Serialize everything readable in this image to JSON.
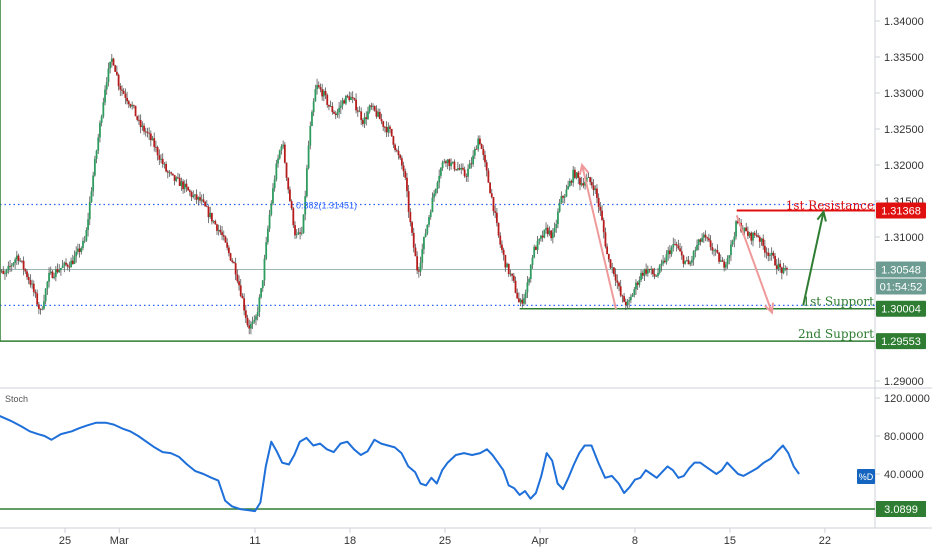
{
  "chart_data": [
    {
      "type": "candlestick",
      "price_axis": {
        "ticks": [
          "1.34000",
          "1.33500",
          "1.33000",
          "1.32500",
          "1.32000",
          "1.31500",
          "1.31000",
          "1.30500",
          "1.30000",
          "1.29500",
          "1.29000"
        ],
        "ylim": [
          1.2885,
          1.3425
        ]
      },
      "x_axis": {
        "ticks": [
          {
            "label": "25",
            "day": 0
          },
          {
            "label": "Mar",
            "day": 4
          },
          {
            "label": "11",
            "day": 14
          },
          {
            "label": "18",
            "day": 21
          },
          {
            "label": "25",
            "day": 28
          },
          {
            "label": "Apr",
            "day": 35
          },
          {
            "label": "8",
            "day": 42
          },
          {
            "label": "15",
            "day": 49
          },
          {
            "label": "22",
            "day": 56
          }
        ]
      },
      "levels": {
        "fib": {
          "label": "0.382(1.31451)",
          "value": 1.31451,
          "color": "#2962ff"
        },
        "resistance": {
          "label": "1st Resistance",
          "value": 1.31368,
          "tag": "1.31368",
          "color": "#e01010"
        },
        "support1": {
          "label": "1st Support",
          "value": 1.30004,
          "tag": "1.30004",
          "color": "#2e7d32"
        },
        "support2": {
          "label": "2nd Support",
          "value": 1.29553,
          "tag": "1.29553",
          "color": "#2e7d32"
        },
        "support1_dotted": {
          "value": 1.3005,
          "color": "#2962ff"
        }
      },
      "current": {
        "price": "1.30548",
        "countdown": "01:54:52",
        "value": 1.30548
      },
      "close_path": [
        [
          -5.3,
          1.3065
        ],
        [
          -4.5,
          1.3045
        ],
        [
          -3.5,
          1.3075
        ],
        [
          -2.5,
          1.3035
        ],
        [
          -1.8,
          1.2995
        ],
        [
          -1.2,
          1.3045
        ],
        [
          -0.5,
          1.3055
        ],
        [
          0.5,
          1.3065
        ],
        [
          1.5,
          1.3095
        ],
        [
          2.0,
          1.3175
        ],
        [
          2.5,
          1.3245
        ],
        [
          3.0,
          1.3315
        ],
        [
          3.5,
          1.335
        ],
        [
          4.0,
          1.331
        ],
        [
          4.5,
          1.3295
        ],
        [
          5.0,
          1.328
        ],
        [
          5.5,
          1.3255
        ],
        [
          6.0,
          1.3245
        ],
        [
          6.5,
          1.323
        ],
        [
          7.0,
          1.321
        ],
        [
          7.5,
          1.319
        ],
        [
          8.0,
          1.318
        ],
        [
          8.5,
          1.3175
        ],
        [
          9.0,
          1.3165
        ],
        [
          9.5,
          1.3155
        ],
        [
          10.0,
          1.315
        ],
        [
          10.5,
          1.3135
        ],
        [
          11.0,
          1.312
        ],
        [
          11.5,
          1.3105
        ],
        [
          12.0,
          1.308
        ],
        [
          12.5,
          1.306
        ],
        [
          13.0,
          1.302
        ],
        [
          13.5,
          1.2975
        ],
        [
          14.0,
          1.298
        ],
        [
          14.5,
          1.303
        ],
        [
          15.0,
          1.312
        ],
        [
          15.5,
          1.319
        ],
        [
          16.0,
          1.3235
        ],
        [
          16.5,
          1.316
        ],
        [
          17.0,
          1.31
        ],
        [
          17.5,
          1.3105
        ],
        [
          18.0,
          1.324
        ],
        [
          18.5,
          1.331
        ],
        [
          19.0,
          1.33
        ],
        [
          19.5,
          1.328
        ],
        [
          20.0,
          1.327
        ],
        [
          20.5,
          1.329
        ],
        [
          21.0,
          1.3295
        ],
        [
          21.5,
          1.328
        ],
        [
          22.0,
          1.326
        ],
        [
          22.5,
          1.328
        ],
        [
          23.0,
          1.327
        ],
        [
          23.5,
          1.3255
        ],
        [
          24.0,
          1.3245
        ],
        [
          24.5,
          1.3215
        ],
        [
          25.0,
          1.319
        ],
        [
          25.5,
          1.311
        ],
        [
          26.0,
          1.305
        ],
        [
          26.5,
          1.31
        ],
        [
          27.0,
          1.3145
        ],
        [
          27.5,
          1.3185
        ],
        [
          28.0,
          1.321
        ],
        [
          28.5,
          1.32
        ],
        [
          29.0,
          1.3195
        ],
        [
          29.5,
          1.3185
        ],
        [
          30.0,
          1.3205
        ],
        [
          30.5,
          1.324
        ],
        [
          31.0,
          1.3195
        ],
        [
          31.5,
          1.315
        ],
        [
          32.0,
          1.3095
        ],
        [
          32.5,
          1.306
        ],
        [
          33.0,
          1.304
        ],
        [
          33.5,
          1.3005
        ],
        [
          34.0,
          1.3025
        ],
        [
          34.5,
          1.308
        ],
        [
          35.0,
          1.3095
        ],
        [
          35.5,
          1.311
        ],
        [
          36.0,
          1.31
        ],
        [
          36.5,
          1.315
        ],
        [
          37.0,
          1.3165
        ],
        [
          37.5,
          1.319
        ],
        [
          38.0,
          1.3175
        ],
        [
          38.5,
          1.318
        ],
        [
          39.0,
          1.317
        ],
        [
          39.5,
          1.313
        ],
        [
          40.0,
          1.307
        ],
        [
          40.5,
          1.305
        ],
        [
          41.0,
          1.3015
        ],
        [
          41.5,
          1.3005
        ],
        [
          42.0,
          1.303
        ],
        [
          42.5,
          1.305
        ],
        [
          43.0,
          1.3055
        ],
        [
          43.5,
          1.3045
        ],
        [
          44.0,
          1.306
        ],
        [
          44.5,
          1.308
        ],
        [
          45.0,
          1.309
        ],
        [
          45.5,
          1.307
        ],
        [
          46.0,
          1.306
        ],
        [
          46.5,
          1.3085
        ],
        [
          47.0,
          1.31
        ],
        [
          47.5,
          1.309
        ],
        [
          48.0,
          1.3075
        ],
        [
          48.5,
          1.306
        ],
        [
          49.0,
          1.308
        ],
        [
          49.5,
          1.312
        ],
        [
          50.0,
          1.311
        ],
        [
          50.5,
          1.31
        ],
        [
          51.0,
          1.3105
        ],
        [
          51.5,
          1.3085
        ],
        [
          52.0,
          1.3075
        ],
        [
          52.5,
          1.306
        ],
        [
          53.0,
          1.305
        ],
        [
          53.3,
          1.3055
        ]
      ],
      "arrows": [
        {
          "from": [
            40.6,
            1.3
          ],
          "to": [
            38.1,
            1.32
          ],
          "color": "#ef9a9a"
        },
        {
          "from": [
            49.5,
            1.313
          ],
          "to": [
            52.1,
            1.2995
          ],
          "color": "#ef9a9a"
        },
        {
          "from": [
            54.4,
            1.3005
          ],
          "to": [
            55.9,
            1.3135
          ],
          "color": "#2e7d32"
        }
      ]
    },
    {
      "type": "line",
      "indicator_name": "Stoch",
      "y_axis": {
        "ticks": [
          "120.0000",
          "80.0000",
          "40.0000"
        ],
        "ylim": [
          0,
          130
        ]
      },
      "badge": "%D",
      "level": {
        "value": 3.0899,
        "tag": "3.0899",
        "color": "#2e7d32"
      },
      "points": [
        [
          -5.3,
          92
        ],
        [
          -4.8,
          101
        ],
        [
          -4.0,
          96
        ],
        [
          -3.2,
          90
        ],
        [
          -2.6,
          85
        ],
        [
          -2.0,
          82
        ],
        [
          -1.5,
          80
        ],
        [
          -1.0,
          76
        ],
        [
          -0.3,
          82
        ],
        [
          0.5,
          85
        ],
        [
          1.0,
          88
        ],
        [
          1.6,
          91
        ],
        [
          2.3,
          94
        ],
        [
          3.0,
          94
        ],
        [
          3.6,
          92
        ],
        [
          4.2,
          88
        ],
        [
          4.8,
          85
        ],
        [
          5.4,
          80
        ],
        [
          6.0,
          74
        ],
        [
          6.6,
          68
        ],
        [
          7.2,
          63
        ],
        [
          7.8,
          62
        ],
        [
          8.4,
          58
        ],
        [
          9.0,
          50
        ],
        [
          9.6,
          43
        ],
        [
          10.2,
          40
        ],
        [
          10.8,
          36
        ],
        [
          11.3,
          33
        ],
        [
          11.8,
          12
        ],
        [
          12.3,
          6
        ],
        [
          12.9,
          3
        ],
        [
          13.5,
          2
        ],
        [
          14.0,
          1
        ],
        [
          14.4,
          10
        ],
        [
          14.8,
          48
        ],
        [
          15.2,
          74
        ],
        [
          15.6,
          64
        ],
        [
          16.0,
          52
        ],
        [
          16.5,
          50
        ],
        [
          16.9,
          60
        ],
        [
          17.3,
          74
        ],
        [
          17.8,
          78
        ],
        [
          18.3,
          70
        ],
        [
          18.8,
          72
        ],
        [
          19.3,
          66
        ],
        [
          19.8,
          63
        ],
        [
          20.3,
          72
        ],
        [
          20.8,
          74
        ],
        [
          21.3,
          66
        ],
        [
          21.8,
          60
        ],
        [
          22.3,
          64
        ],
        [
          22.8,
          76
        ],
        [
          23.3,
          72
        ],
        [
          23.8,
          70
        ],
        [
          24.3,
          68
        ],
        [
          24.8,
          62
        ],
        [
          25.3,
          48
        ],
        [
          25.8,
          42
        ],
        [
          26.2,
          30
        ],
        [
          26.6,
          28
        ],
        [
          27.0,
          36
        ],
        [
          27.4,
          30
        ],
        [
          27.8,
          44
        ],
        [
          28.2,
          52
        ],
        [
          28.8,
          60
        ],
        [
          29.4,
          62
        ],
        [
          30.0,
          60
        ],
        [
          30.6,
          62
        ],
        [
          31.1,
          66
        ],
        [
          31.5,
          60
        ],
        [
          31.9,
          52
        ],
        [
          32.3,
          44
        ],
        [
          32.7,
          28
        ],
        [
          33.1,
          25
        ],
        [
          33.5,
          18
        ],
        [
          33.9,
          22
        ],
        [
          34.3,
          14
        ],
        [
          34.7,
          20
        ],
        [
          35.1,
          38
        ],
        [
          35.5,
          62
        ],
        [
          35.9,
          54
        ],
        [
          36.3,
          30
        ],
        [
          36.7,
          24
        ],
        [
          37.1,
          36
        ],
        [
          37.5,
          50
        ],
        [
          37.9,
          62
        ],
        [
          38.3,
          70
        ],
        [
          38.8,
          70
        ],
        [
          39.3,
          52
        ],
        [
          39.8,
          36
        ],
        [
          40.3,
          38
        ],
        [
          40.8,
          30
        ],
        [
          41.2,
          20
        ],
        [
          41.6,
          26
        ],
        [
          42.0,
          34
        ],
        [
          42.4,
          36
        ],
        [
          42.8,
          44
        ],
        [
          43.2,
          40
        ],
        [
          43.6,
          36
        ],
        [
          44.0,
          42
        ],
        [
          44.4,
          48
        ],
        [
          44.8,
          44
        ],
        [
          45.2,
          36
        ],
        [
          45.6,
          38
        ],
        [
          46.0,
          46
        ],
        [
          46.4,
          52
        ],
        [
          46.8,
          52
        ],
        [
          47.2,
          48
        ],
        [
          47.6,
          44
        ],
        [
          48.0,
          40
        ],
        [
          48.4,
          44
        ],
        [
          48.8,
          52
        ],
        [
          49.2,
          46
        ],
        [
          49.6,
          40
        ],
        [
          50.0,
          38
        ],
        [
          50.5,
          42
        ],
        [
          51.0,
          46
        ],
        [
          51.5,
          52
        ],
        [
          52.0,
          56
        ],
        [
          52.5,
          64
        ],
        [
          52.9,
          70
        ],
        [
          53.3,
          62
        ],
        [
          53.7,
          48
        ],
        [
          54.1,
          40
        ]
      ]
    }
  ]
}
